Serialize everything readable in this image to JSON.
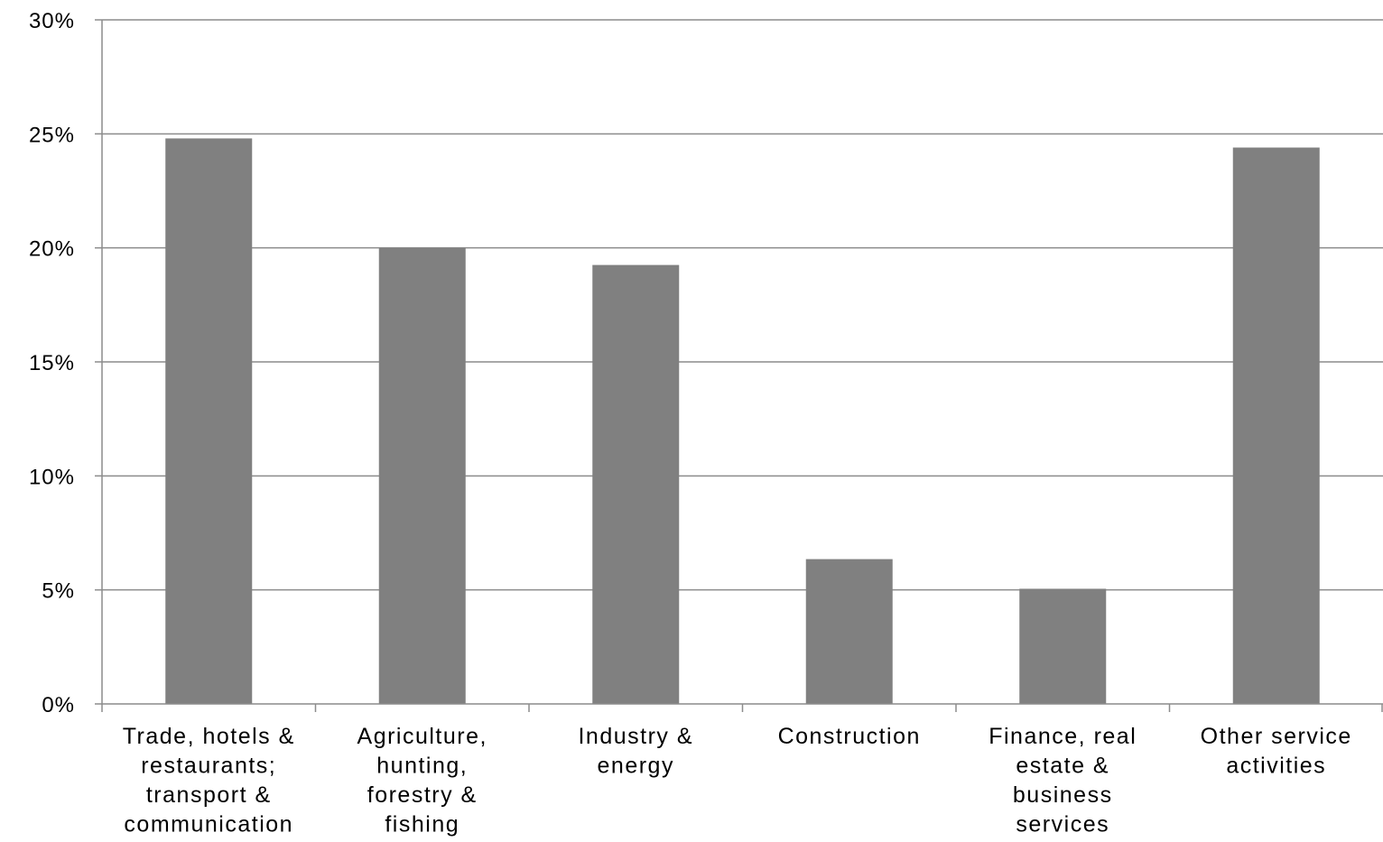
{
  "chart_data": {
    "type": "bar",
    "title": "",
    "xlabel": "",
    "ylabel": "",
    "categories": [
      [
        "Trade, hotels &",
        "restaurants;",
        "transport &",
        "communication"
      ],
      [
        "Agriculture,",
        "hunting,",
        "forestry &",
        "fishing"
      ],
      [
        "Industry &",
        "energy"
      ],
      [
        "Construction"
      ],
      [
        "Finance, real",
        "estate &",
        "business",
        "services"
      ],
      [
        "Other service",
        "activities"
      ]
    ],
    "values": [
      24.8,
      20.0,
      19.25,
      6.35,
      5.05,
      24.4
    ],
    "ylim": [
      0,
      30
    ],
    "yticks": [
      {
        "value": 0,
        "label": "0%"
      },
      {
        "value": 5,
        "label": "5%"
      },
      {
        "value": 10,
        "label": "10%"
      },
      {
        "value": 15,
        "label": "15%"
      },
      {
        "value": 20,
        "label": "20%"
      },
      {
        "value": 25,
        "label": "25%"
      },
      {
        "value": 30,
        "label": "30%"
      }
    ],
    "grid": true,
    "legend": "none",
    "colors": {
      "bar": "#808080",
      "grid": "#8c8c8c",
      "axis": "#8c8c8c"
    }
  }
}
